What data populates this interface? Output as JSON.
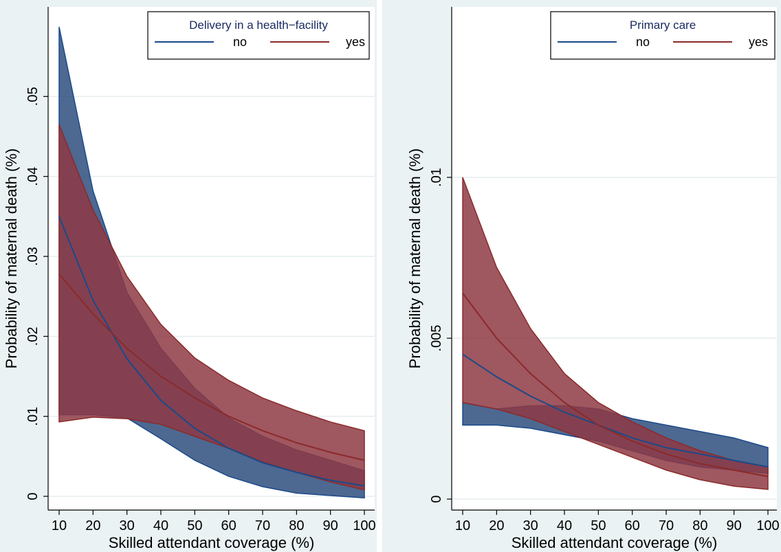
{
  "chart_data": [
    {
      "type": "line",
      "legend_title": "Delivery in a health−facility",
      "legend_position": "top-right",
      "xlabel": "Skilled attendant coverage (%)",
      "ylabel": "Probability of maternal death (%)",
      "xlim": [
        10,
        100
      ],
      "ylim": [
        0,
        0.06
      ],
      "x_ticks": [
        "10",
        "20",
        "30",
        "40",
        "50",
        "60",
        "70",
        "80",
        "90",
        "100"
      ],
      "y_ticks": [
        {
          "value": 0,
          "label": "0"
        },
        {
          "value": 0.01,
          "label": ".01"
        },
        {
          "value": 0.02,
          "label": ".02"
        },
        {
          "value": 0.03,
          "label": ".03"
        },
        {
          "value": 0.04,
          "label": ".04"
        },
        {
          "value": 0.05,
          "label": ".05"
        }
      ],
      "grid": true,
      "x": [
        10,
        20,
        30,
        40,
        50,
        60,
        70,
        80,
        90,
        100
      ],
      "series": [
        {
          "name": "no",
          "color": "#1a4a8a",
          "band_color": "#2e4d7e",
          "values": [
            0.035,
            0.0245,
            0.0172,
            0.012,
            0.0085,
            0.006,
            0.0042,
            0.003,
            0.002,
            0.0013
          ],
          "lower": [
            0.0102,
            0.0102,
            0.0098,
            0.0072,
            0.0045,
            0.0025,
            0.0012,
            0.0004,
            0.0001,
            -0.0002
          ],
          "upper": [
            0.0587,
            0.0382,
            0.0255,
            0.0185,
            0.0135,
            0.0098,
            0.0075,
            0.0058,
            0.0045,
            0.0032
          ]
        },
        {
          "name": "yes",
          "color": "#8b2a2a",
          "band_color": "#8e3a44",
          "values": [
            0.0278,
            0.0228,
            0.0185,
            0.015,
            0.0123,
            0.01,
            0.0082,
            0.0067,
            0.0055,
            0.0045
          ],
          "lower": [
            0.0093,
            0.0099,
            0.0097,
            0.009,
            0.0075,
            0.006,
            0.0043,
            0.003,
            0.0018,
            0.0008
          ],
          "upper": [
            0.0465,
            0.0358,
            0.0275,
            0.0215,
            0.0173,
            0.0145,
            0.0123,
            0.0107,
            0.0093,
            0.0082
          ]
        }
      ]
    },
    {
      "type": "line",
      "legend_title": "Primary care",
      "legend_position": "top-right",
      "xlabel": "Skilled attendant coverage (%)",
      "ylabel": "Probability of maternal death (%)",
      "xlim": [
        10,
        100
      ],
      "ylim": [
        0,
        0.015
      ],
      "x_ticks": [
        "10",
        "20",
        "30",
        "40",
        "50",
        "60",
        "70",
        "80",
        "90",
        "100"
      ],
      "y_ticks": [
        {
          "value": 0,
          "label": "0"
        },
        {
          "value": 0.005,
          "label": ".005"
        },
        {
          "value": 0.01,
          "label": ".01"
        }
      ],
      "grid": true,
      "x": [
        10,
        20,
        30,
        40,
        50,
        60,
        70,
        80,
        90,
        100
      ],
      "series": [
        {
          "name": "no",
          "color": "#1a4a8a",
          "band_color": "#2e4d7e",
          "values": [
            0.0045,
            0.0038,
            0.0032,
            0.0027,
            0.0023,
            0.0019,
            0.0016,
            0.0014,
            0.0012,
            0.001
          ],
          "lower": [
            0.0023,
            0.0023,
            0.0022,
            0.002,
            0.0018,
            0.0015,
            0.0012,
            0.001,
            0.0009,
            0.0008
          ],
          "upper": [
            0.003,
            0.0028,
            0.0029,
            0.0029,
            0.0028,
            0.0025,
            0.0023,
            0.0021,
            0.0019,
            0.0016
          ]
        },
        {
          "name": "yes",
          "color": "#8b2a2a",
          "band_color": "#8e3a44",
          "values": [
            0.0064,
            0.005,
            0.0039,
            0.003,
            0.0023,
            0.0018,
            0.0014,
            0.0011,
            0.0009,
            0.0007
          ],
          "lower": [
            0.003,
            0.0028,
            0.0025,
            0.0021,
            0.0017,
            0.0013,
            0.0009,
            0.0006,
            0.0004,
            0.0003
          ],
          "upper": [
            0.01,
            0.0072,
            0.0053,
            0.0039,
            0.003,
            0.0024,
            0.0019,
            0.0015,
            0.0012,
            0.001
          ]
        }
      ]
    }
  ]
}
